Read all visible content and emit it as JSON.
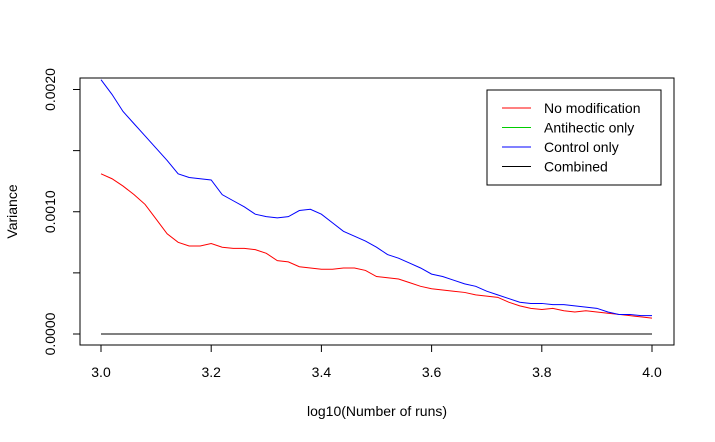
{
  "chart_data": {
    "type": "line",
    "title": "",
    "xlabel": "log10(Number of runs)",
    "ylabel": "Variance",
    "xlim": [
      3.0,
      4.0
    ],
    "ylim": [
      0.0,
      0.002
    ],
    "x_ticks": [
      3.0,
      3.2,
      3.4,
      3.6,
      3.8,
      4.0
    ],
    "x_tick_labels": [
      "3.0",
      "3.2",
      "3.4",
      "3.6",
      "3.8",
      "4.0"
    ],
    "y_ticks": [
      0.0,
      0.0005,
      0.001,
      0.0015,
      0.002
    ],
    "y_tick_labels": [
      "0.0000",
      "",
      "0.0010",
      "",
      "0.0020"
    ],
    "grid": false,
    "legend_position": "top-right",
    "series": [
      {
        "name": "No modification",
        "color": "#ff0000",
        "points": [
          [
            3.0,
            0.00131
          ],
          [
            3.02,
            0.00127
          ],
          [
            3.04,
            0.00121
          ],
          [
            3.06,
            0.00114
          ],
          [
            3.08,
            0.00106
          ],
          [
            3.1,
            0.00094
          ],
          [
            3.12,
            0.00082
          ],
          [
            3.14,
            0.00075
          ],
          [
            3.16,
            0.00072
          ],
          [
            3.18,
            0.00072
          ],
          [
            3.2,
            0.00074
          ],
          [
            3.22,
            0.00071
          ],
          [
            3.24,
            0.0007
          ],
          [
            3.26,
            0.0007
          ],
          [
            3.28,
            0.00069
          ],
          [
            3.3,
            0.00066
          ],
          [
            3.32,
            0.0006
          ],
          [
            3.34,
            0.00059
          ],
          [
            3.36,
            0.00055
          ],
          [
            3.38,
            0.00054
          ],
          [
            3.4,
            0.00053
          ],
          [
            3.42,
            0.00053
          ],
          [
            3.44,
            0.00054
          ],
          [
            3.46,
            0.00054
          ],
          [
            3.48,
            0.00052
          ],
          [
            3.5,
            0.00047
          ],
          [
            3.52,
            0.00046
          ],
          [
            3.54,
            0.00045
          ],
          [
            3.56,
            0.00042
          ],
          [
            3.58,
            0.00039
          ],
          [
            3.6,
            0.00037
          ],
          [
            3.62,
            0.00036
          ],
          [
            3.64,
            0.00035
          ],
          [
            3.66,
            0.00034
          ],
          [
            3.68,
            0.00032
          ],
          [
            3.7,
            0.00031
          ],
          [
            3.72,
            0.0003
          ],
          [
            3.74,
            0.00026
          ],
          [
            3.76,
            0.00023
          ],
          [
            3.78,
            0.00021
          ],
          [
            3.8,
            0.0002
          ],
          [
            3.82,
            0.00021
          ],
          [
            3.84,
            0.00019
          ],
          [
            3.86,
            0.00018
          ],
          [
            3.88,
            0.00019
          ],
          [
            3.9,
            0.00018
          ],
          [
            3.92,
            0.00017
          ],
          [
            3.94,
            0.00016
          ],
          [
            3.96,
            0.00015
          ],
          [
            3.98,
            0.00014
          ],
          [
            4.0,
            0.00013
          ]
        ]
      },
      {
        "name": "Antihectic only",
        "color": "#00cd00",
        "points": []
      },
      {
        "name": "Control only",
        "color": "#0000ff",
        "points": [
          [
            3.0,
            0.00208
          ],
          [
            3.02,
            0.00196
          ],
          [
            3.04,
            0.00182
          ],
          [
            3.06,
            0.00172
          ],
          [
            3.08,
            0.00162
          ],
          [
            3.1,
            0.00152
          ],
          [
            3.12,
            0.00142
          ],
          [
            3.14,
            0.00131
          ],
          [
            3.16,
            0.00128
          ],
          [
            3.18,
            0.00127
          ],
          [
            3.2,
            0.00126
          ],
          [
            3.22,
            0.00114
          ],
          [
            3.24,
            0.00109
          ],
          [
            3.26,
            0.00104
          ],
          [
            3.28,
            0.00098
          ],
          [
            3.3,
            0.00096
          ],
          [
            3.32,
            0.00095
          ],
          [
            3.34,
            0.00096
          ],
          [
            3.36,
            0.00101
          ],
          [
            3.38,
            0.00102
          ],
          [
            3.4,
            0.00098
          ],
          [
            3.42,
            0.00091
          ],
          [
            3.44,
            0.00084
          ],
          [
            3.46,
            0.0008
          ],
          [
            3.48,
            0.00076
          ],
          [
            3.5,
            0.00071
          ],
          [
            3.52,
            0.00065
          ],
          [
            3.54,
            0.00062
          ],
          [
            3.56,
            0.00058
          ],
          [
            3.58,
            0.00054
          ],
          [
            3.6,
            0.00049
          ],
          [
            3.62,
            0.00047
          ],
          [
            3.64,
            0.00044
          ],
          [
            3.66,
            0.00041
          ],
          [
            3.68,
            0.00039
          ],
          [
            3.7,
            0.00035
          ],
          [
            3.72,
            0.00032
          ],
          [
            3.74,
            0.00029
          ],
          [
            3.76,
            0.00026
          ],
          [
            3.78,
            0.00025
          ],
          [
            3.8,
            0.00025
          ],
          [
            3.82,
            0.00024
          ],
          [
            3.84,
            0.00024
          ],
          [
            3.86,
            0.00023
          ],
          [
            3.88,
            0.00022
          ],
          [
            3.9,
            0.00021
          ],
          [
            3.92,
            0.00018
          ],
          [
            3.94,
            0.00016
          ],
          [
            3.96,
            0.00016
          ],
          [
            3.98,
            0.00015
          ],
          [
            4.0,
            0.00015
          ]
        ]
      },
      {
        "name": "Combined",
        "color": "#000000",
        "points": [
          [
            3.0,
            0.0
          ],
          [
            4.0,
            0.0
          ]
        ]
      }
    ]
  }
}
